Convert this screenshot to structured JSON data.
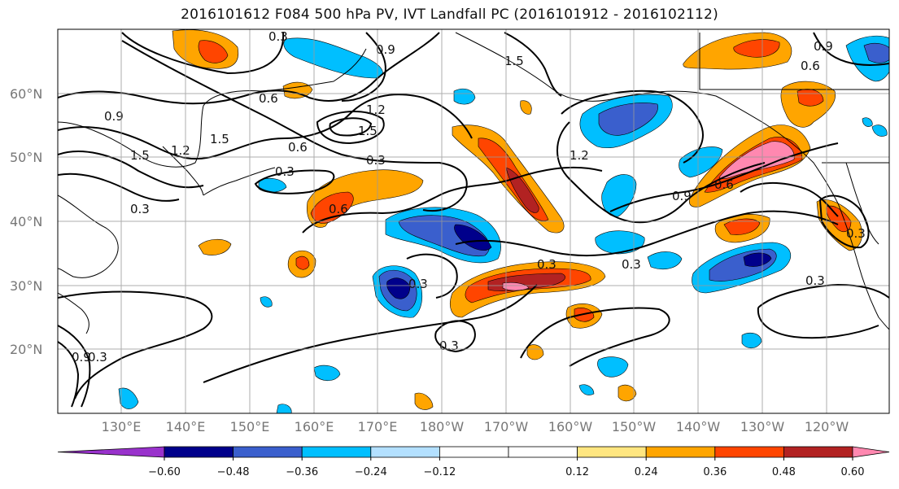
{
  "title": "2016101612 F084 500 hPa PV, IVT Landfall PC (2016101912 - 2016102112)",
  "map": {
    "lat_labels": [
      "60°N",
      "50°N",
      "40°N",
      "30°N",
      "20°N"
    ],
    "lon_labels": [
      "130°E",
      "140°E",
      "150°E",
      "160°E",
      "170°E",
      "180°W",
      "170°W",
      "160°W",
      "150°W",
      "140°W",
      "130°W",
      "120°W"
    ],
    "contour_labels": [
      "0.3",
      "0.9",
      "1.5",
      "0.6",
      "1.2",
      "1.5",
      "0.9",
      "1.5",
      "1.2",
      "1.5",
      "0.6",
      "0.3",
      "0.3",
      "0.6",
      "0.3",
      "1.2",
      "0.9",
      "0.6",
      "0.9",
      "0.6",
      "0.3",
      "0.3",
      "0.3",
      "0.3",
      "0.3",
      "0.3",
      "0.9",
      "0.3"
    ],
    "fill_colors": {
      "pink": "#ff88b0",
      "darkred": "#b22222",
      "red": "#ff4500",
      "orange": "#ffa500",
      "yellow": "#ffe680",
      "lightblue": "#b3e0ff",
      "cyan": "#00bfff",
      "blue": "#3a5fcd",
      "navy": "#00008b",
      "purple": "#9932cc"
    }
  },
  "colorbar": {
    "labels": [
      "−0.60",
      "−0.48",
      "−0.36",
      "−0.24",
      "−0.12",
      "0.12",
      "0.24",
      "0.36",
      "0.48",
      "0.60"
    ],
    "colors": [
      "#9932cc",
      "#00008b",
      "#3a5fcd",
      "#00bfff",
      "#b3e0ff",
      "#ffffff",
      "#ffffff",
      "#ffe680",
      "#ffa500",
      "#ff4500",
      "#b22222",
      "#ff88b0"
    ]
  }
}
